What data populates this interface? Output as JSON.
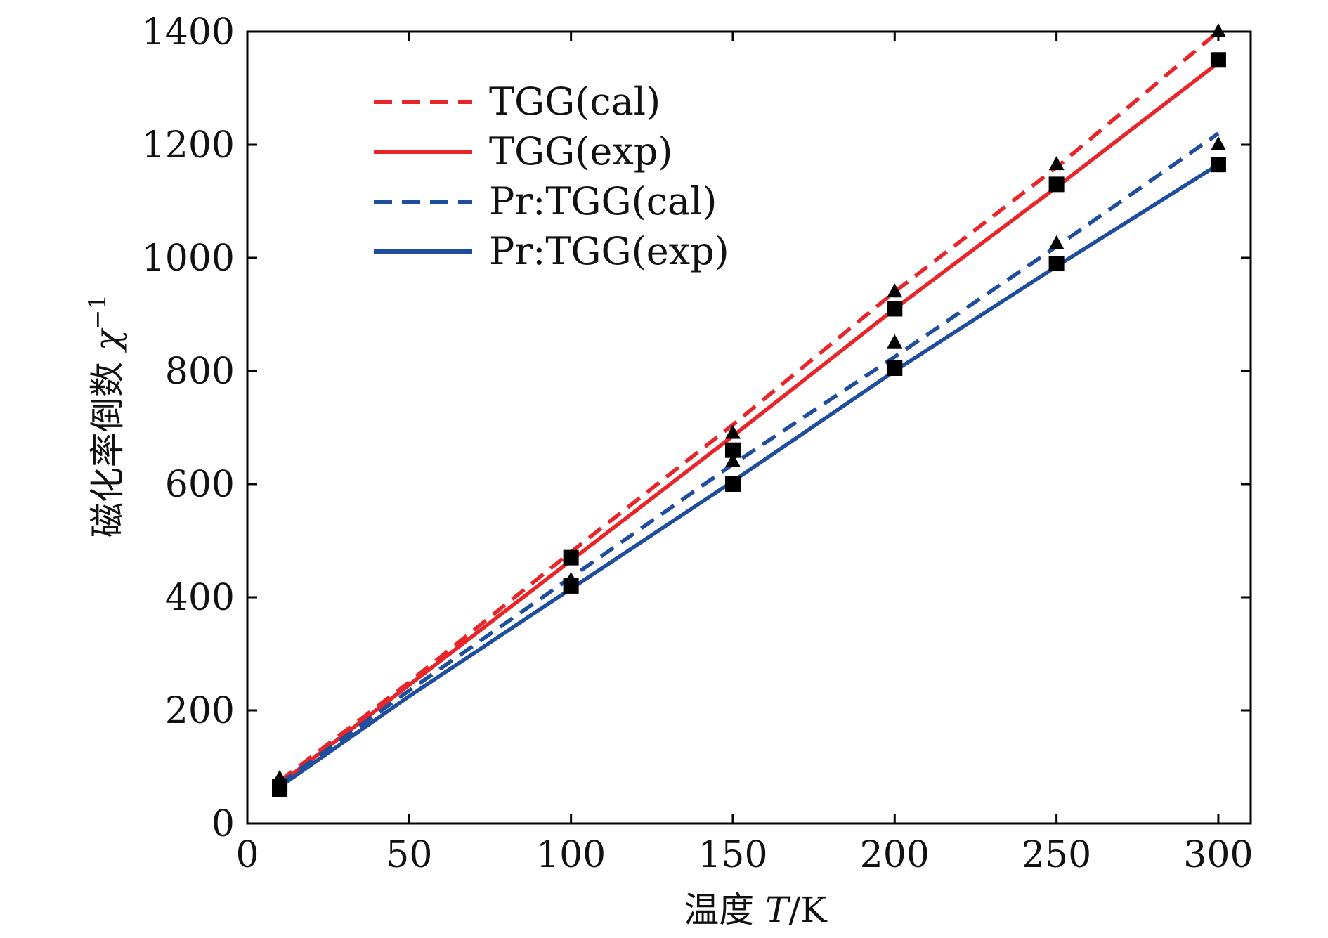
{
  "chart_data": {
    "type": "line",
    "xlabel_prefix": "温度 ",
    "xlabel_var": "T",
    "xlabel_unit": "/K",
    "ylabel_prefix": "磁化率倒数 ",
    "ylabel_var": "χ",
    "ylabel_sup": "−1",
    "xlim": [
      0,
      310
    ],
    "ylim": [
      0,
      1400
    ],
    "xticks": [
      0,
      50,
      100,
      150,
      200,
      250,
      300
    ],
    "yticks": [
      0,
      200,
      400,
      600,
      800,
      1000,
      1200,
      1400
    ],
    "grid": false,
    "legend_position": "top-left",
    "series": [
      {
        "name": "TGG(cal)",
        "color": "#e8262a",
        "dash": true,
        "x": [
          10,
          50,
          100,
          150,
          200,
          250,
          300
        ],
        "y": [
          75,
          250,
          480,
          705,
          940,
          1160,
          1400
        ]
      },
      {
        "name": "TGG(exp)",
        "color": "#e8262a",
        "dash": false,
        "x": [
          10,
          50,
          100,
          150,
          200,
          250,
          300
        ],
        "y": [
          70,
          245,
          465,
          685,
          910,
          1125,
          1345
        ]
      },
      {
        "name": "Pr:TGG(cal)",
        "color": "#1f4e9e",
        "dash": true,
        "x": [
          10,
          50,
          100,
          150,
          200,
          250,
          300
        ],
        "y": [
          70,
          235,
          435,
          635,
          825,
          1020,
          1220
        ]
      },
      {
        "name": "Pr:TGG(exp)",
        "color": "#1f4e9e",
        "dash": false,
        "x": [
          10,
          50,
          100,
          150,
          200,
          250,
          300
        ],
        "y": [
          65,
          225,
          415,
          605,
          800,
          985,
          1165
        ]
      }
    ],
    "markers": [
      {
        "shape": "triangle",
        "x": [
          10,
          10,
          100,
          100,
          150,
          150,
          200,
          200,
          250,
          250,
          300,
          300
        ],
        "y": [
          80,
          75,
          470,
          430,
          690,
          640,
          940,
          850,
          1165,
          1025,
          1400,
          1200
        ]
      },
      {
        "shape": "square",
        "x": [
          10,
          10,
          100,
          100,
          150,
          150,
          200,
          200,
          250,
          250,
          300,
          300
        ],
        "y": [
          65,
          60,
          470,
          420,
          660,
          600,
          910,
          805,
          1130,
          990,
          1350,
          1165
        ]
      }
    ]
  }
}
